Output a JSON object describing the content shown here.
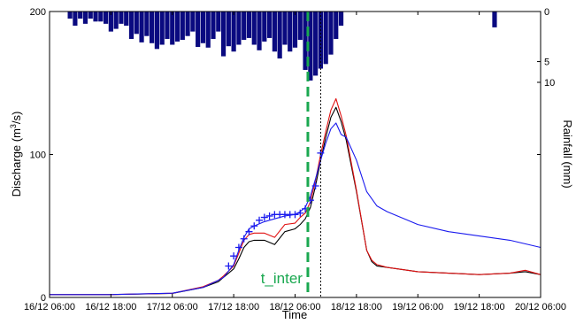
{
  "chart_data": {
    "type": "line",
    "xlabel": "Time",
    "ylabel": "Discharge (m³/s)",
    "ylabel_parts": {
      "main": "Discharge (m",
      "sup": "3",
      "tail": "/s)"
    },
    "y2label": "Rainfall (mm)",
    "x_tick_labels": [
      "16/12 06:00",
      "16/12 18:00",
      "17/12 06:00",
      "17/12 18:00",
      "18/12 06:00",
      "18/12 18:00",
      "19/12 06:00",
      "19/12 18:00",
      "20/12 06:00"
    ],
    "x_range_hours": [
      0,
      96
    ],
    "x_tick_step_hours": 12,
    "ylim": [
      0,
      200
    ],
    "y_ticks": [
      0,
      100,
      200
    ],
    "y_tick_labels": [
      "0",
      "100",
      "200"
    ],
    "y2_ticks": [
      0,
      5,
      10
    ],
    "y2_tick_labels": [
      "0",
      "5",
      "10"
    ],
    "y2_reverse": true,
    "y2_scale": "sqrt",
    "y2_max": 10,
    "grid": false,
    "annotation": {
      "text": "t_inter",
      "x_hours": 50.5,
      "color": "#1aa850"
    },
    "dotted_marker_x_hours": 53,
    "colors": {
      "rain": "#0a0a80",
      "black": "#000000",
      "red": "#e01010",
      "blue": "#1a1aee",
      "observed": "#1a1aee",
      "annotation": "#1aa850"
    },
    "rainfall": {
      "x_hours": [
        4,
        5,
        6,
        7,
        8,
        9,
        10,
        11,
        12,
        13,
        14,
        15,
        16,
        17,
        18,
        19,
        20,
        21,
        22,
        23,
        24,
        25,
        26,
        27,
        28,
        29,
        30,
        31,
        32,
        33,
        34,
        35,
        36,
        37,
        38,
        39,
        40,
        41,
        42,
        43,
        44,
        45,
        46,
        47,
        48,
        49,
        50,
        51,
        52,
        53,
        54,
        55,
        56,
        57,
        87
      ],
      "values": [
        0.1,
        0.4,
        0.1,
        0.3,
        0.1,
        0.2,
        0.2,
        0.3,
        0.8,
        0.6,
        0.3,
        0.4,
        1.5,
        1.0,
        1.9,
        1.2,
        2.0,
        2.8,
        2.2,
        1.5,
        2.2,
        1.8,
        1.6,
        1.2,
        0.8,
        2.5,
        2.0,
        2.6,
        1.5,
        0.8,
        4.0,
        2.4,
        3.2,
        2.2,
        1.6,
        1.4,
        2.2,
        3.0,
        1.8,
        1.4,
        3.2,
        4.4,
        2.2,
        3.2,
        2.6,
        1.6,
        6.8,
        9.5,
        8.2,
        6.5,
        5.5,
        3.7,
        1.5,
        0.4,
        0.5
      ]
    },
    "series": [
      {
        "name": "",
        "color": "black",
        "x": [
          0,
          12,
          24,
          30,
          33,
          34,
          36,
          37,
          38,
          39,
          40,
          42,
          44,
          46,
          48,
          49,
          50,
          51,
          52,
          53,
          54,
          55,
          56,
          57,
          58,
          60,
          62,
          63,
          64,
          66,
          68,
          70,
          72,
          78,
          84,
          90,
          93,
          96
        ],
        "y": [
          2,
          2,
          2.8,
          7,
          11,
          14,
          20,
          27,
          35,
          39,
          40,
          40,
          37,
          46,
          48,
          51,
          55,
          63,
          78,
          96,
          112,
          126,
          133,
          123,
          110,
          74,
          33,
          25,
          22,
          21,
          20,
          19,
          18,
          17,
          16,
          17,
          18,
          16
        ]
      },
      {
        "name": "",
        "color": "red",
        "x": [
          0,
          12,
          24,
          30,
          33,
          34,
          36,
          37,
          38,
          39,
          40,
          42,
          44,
          46,
          48,
          49,
          50,
          51,
          52,
          53,
          54,
          55,
          56,
          57,
          58,
          60,
          62,
          63,
          64,
          66,
          68,
          70,
          72,
          78,
          84,
          90,
          93,
          96
        ],
        "y": [
          2,
          2,
          2.9,
          7.5,
          12,
          15,
          22,
          31,
          40,
          44,
          45,
          45,
          42,
          51,
          52,
          56,
          59,
          67,
          82,
          100,
          116,
          131,
          139,
          127,
          113,
          75,
          33,
          26,
          23,
          21,
          20,
          19,
          18,
          17,
          16,
          17,
          19,
          16
        ]
      },
      {
        "name": "",
        "color": "blue",
        "x": [
          0,
          12,
          24,
          30,
          33,
          34,
          36,
          37,
          38,
          39,
          40,
          42,
          44,
          46,
          48,
          49,
          50,
          51,
          52,
          53,
          54,
          55,
          56,
          57,
          58,
          60,
          62,
          64,
          66,
          70,
          72,
          78,
          84,
          90,
          96
        ],
        "y": [
          2,
          2,
          3,
          7,
          12,
          14,
          23,
          33,
          42,
          48,
          50,
          53,
          55,
          57,
          58,
          60,
          63,
          71,
          83,
          96,
          108,
          118,
          122,
          114,
          112,
          96,
          74,
          64,
          60,
          54,
          51,
          46,
          43,
          40,
          35
        ]
      },
      {
        "name": "",
        "color": "observed",
        "marker": "+",
        "x": [
          35,
          36,
          37,
          38,
          39,
          40,
          41,
          42,
          43,
          44,
          45,
          46,
          47,
          48,
          49,
          50,
          51,
          52,
          53
        ],
        "y": [
          22,
          29,
          35,
          41,
          46,
          50,
          54,
          56,
          57,
          58,
          58,
          58,
          58,
          58,
          59,
          62,
          68,
          78,
          101
        ]
      }
    ]
  }
}
